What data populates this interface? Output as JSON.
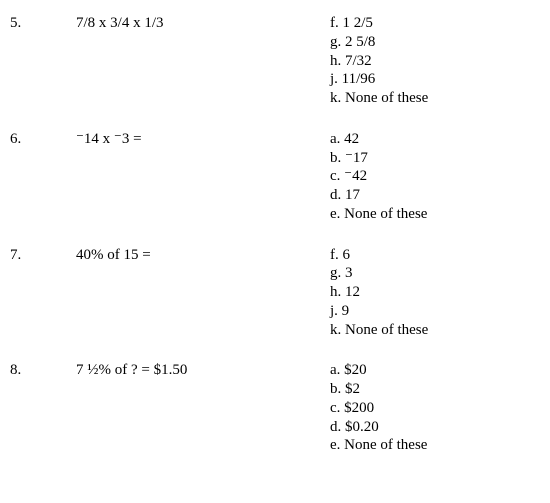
{
  "font_family": "Times New Roman",
  "font_size_pt": 12,
  "text_color": "#000000",
  "background_color": "#ffffff",
  "questions": [
    {
      "number": "5.",
      "problem": "7/8 x 3/4 x 1/3",
      "answers": [
        "f. 1 2/5",
        "g. 2 5/8",
        "h. 7/32",
        "j. 11/96",
        "k. None of these"
      ]
    },
    {
      "number": "6.",
      "problem": "⁻14 x ⁻3 =",
      "answers": [
        "a. 42",
        "b. ⁻17",
        "c. ⁻42",
        "d. 17",
        "e. None of these"
      ]
    },
    {
      "number": "7.",
      "problem": "40% of 15 =",
      "answers": [
        "f. 6",
        "g. 3",
        "h. 12",
        "j. 9",
        "k. None of these"
      ]
    },
    {
      "number": "8.",
      "problem": "7 ½% of ? = $1.50",
      "answers": [
        "a. $20",
        "b. $2",
        "c. $200",
        "d. $0.20",
        "e. None of these"
      ]
    }
  ]
}
